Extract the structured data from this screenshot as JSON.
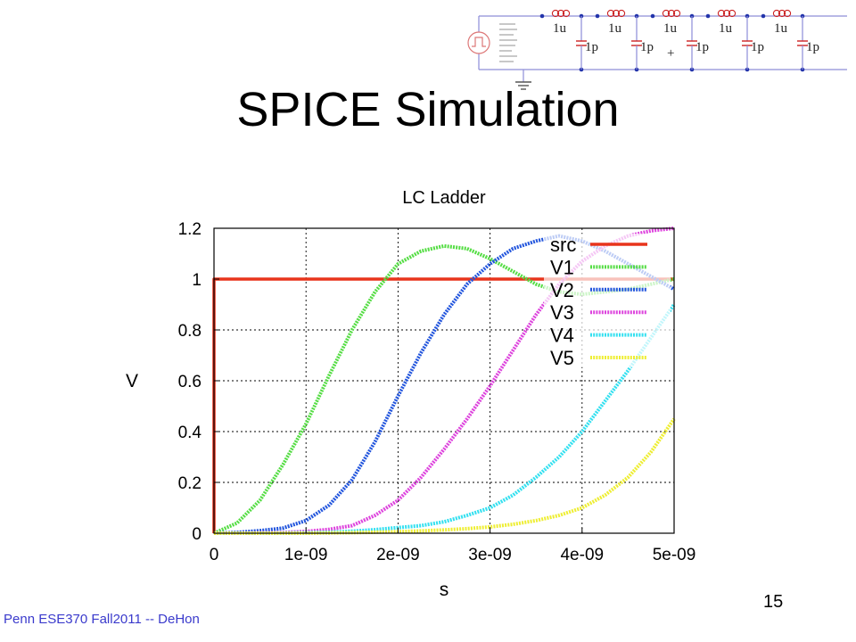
{
  "slide": {
    "title": "SPICE Simulation",
    "footer": "Penn ESE370 Fall2011 -- DeHon",
    "page_number": "15"
  },
  "circuit": {
    "inductor_labels": [
      "1u",
      "1u",
      "1u",
      "1u",
      "1u"
    ],
    "capacitor_labels": [
      "1p",
      "1p",
      "1p",
      "1p",
      "1p"
    ],
    "plus_sign": "+",
    "colors": {
      "wire": "#8d8dd8",
      "component": "#cc2222",
      "node": "#2233aa"
    }
  },
  "chart_data": {
    "type": "line",
    "title": "LC Ladder",
    "xlabel": "s",
    "ylabel": "V",
    "xlim": [
      0,
      5e-09
    ],
    "ylim": [
      0,
      1.2
    ],
    "grid": true,
    "legend_position": "top-right",
    "x_tick_labels": [
      "0",
      "1e-09",
      "2e-09",
      "3e-09",
      "4e-09",
      "5e-09"
    ],
    "x_ticks": [
      0,
      1e-09,
      2e-09,
      3e-09,
      4e-09,
      5e-09
    ],
    "y_tick_labels": [
      "0",
      "0.2",
      "0.4",
      "0.6",
      "0.8",
      "1",
      "1.2"
    ],
    "y_ticks": [
      0,
      0.2,
      0.4,
      0.6,
      0.8,
      1.0,
      1.2
    ],
    "x": [
      0,
      2.5e-10,
      5e-10,
      7.5e-10,
      1e-09,
      1.25e-09,
      1.5e-09,
      1.75e-09,
      2e-09,
      2.25e-09,
      2.5e-09,
      2.75e-09,
      3e-09,
      3.25e-09,
      3.5e-09,
      3.75e-09,
      4e-09,
      4.25e-09,
      4.5e-09,
      4.75e-09,
      5e-09
    ],
    "series": [
      {
        "name": "src",
        "color": "#e8341c",
        "style": "solid",
        "x": [
          0,
          0,
          5e-09
        ],
        "values": [
          0,
          1.0,
          1.0
        ]
      },
      {
        "name": "V1",
        "color": "#55dd44",
        "style": "dotted",
        "values": [
          0,
          0.04,
          0.13,
          0.27,
          0.43,
          0.62,
          0.8,
          0.95,
          1.06,
          1.11,
          1.13,
          1.12,
          1.08,
          1.03,
          0.98,
          0.95,
          0.94,
          0.95,
          0.96,
          0.98,
          1.0
        ]
      },
      {
        "name": "V2",
        "color": "#2255dd",
        "style": "dotted",
        "values": [
          0,
          0.003,
          0.01,
          0.02,
          0.05,
          0.11,
          0.21,
          0.36,
          0.54,
          0.71,
          0.86,
          0.98,
          1.06,
          1.12,
          1.15,
          1.17,
          1.15,
          1.11,
          1.06,
          1.01,
          0.96
        ]
      },
      {
        "name": "V3",
        "color": "#dd44dd",
        "style": "dotted",
        "values": [
          0,
          0,
          0.001,
          0.003,
          0.007,
          0.015,
          0.03,
          0.07,
          0.13,
          0.22,
          0.33,
          0.45,
          0.58,
          0.72,
          0.86,
          0.98,
          1.07,
          1.13,
          1.17,
          1.19,
          1.2
        ]
      },
      {
        "name": "V4",
        "color": "#33e0f0",
        "style": "dotted",
        "values": [
          0,
          0,
          0,
          0.001,
          0.002,
          0.004,
          0.008,
          0.014,
          0.022,
          0.03,
          0.045,
          0.07,
          0.1,
          0.15,
          0.22,
          0.3,
          0.4,
          0.52,
          0.64,
          0.77,
          0.9
        ]
      },
      {
        "name": "V5",
        "color": "#eeee33",
        "style": "dotted",
        "values": [
          0,
          0,
          0,
          0,
          0,
          0.001,
          0.002,
          0.004,
          0.006,
          0.009,
          0.013,
          0.018,
          0.025,
          0.035,
          0.05,
          0.07,
          0.1,
          0.15,
          0.22,
          0.32,
          0.45
        ]
      }
    ]
  }
}
